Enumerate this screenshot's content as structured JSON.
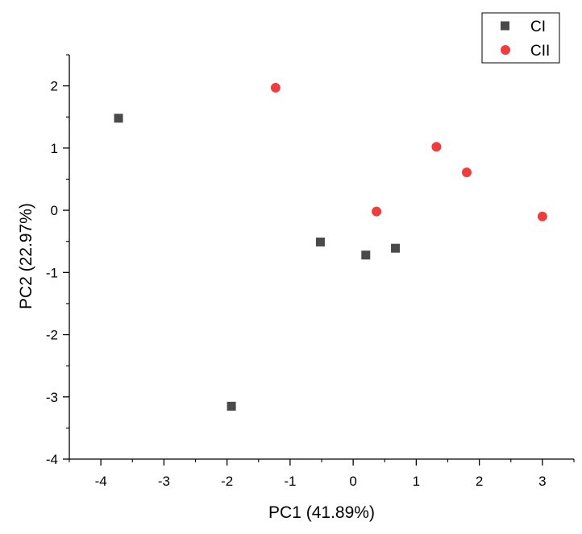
{
  "chart_data": {
    "type": "scatter",
    "title": "",
    "xlabel": "PC1 (41.89%)",
    "ylabel": "PC2 (22.97%)",
    "xlim": [
      -4.5,
      3.5
    ],
    "ylim": [
      -4,
      2.5
    ],
    "xticks": [
      -4,
      -3,
      -2,
      -1,
      0,
      1,
      2,
      3
    ],
    "yticks": [
      -4,
      -3,
      -2,
      -1,
      0,
      1,
      2
    ],
    "xtick_labels": [
      "-4",
      "-3",
      "-2",
      "-1",
      "0",
      "1",
      "2",
      "3"
    ],
    "ytick_labels": [
      "-4",
      "-3",
      "-2",
      "-1",
      "0",
      "1",
      "2"
    ],
    "legend_position": "top-right",
    "series": [
      {
        "name": "CI",
        "marker": "square",
        "color": "#4a4a4a",
        "x": [
          -3.72,
          -1.93,
          -0.52,
          0.2,
          0.67
        ],
        "y": [
          1.48,
          -3.15,
          -0.51,
          -0.72,
          -0.61
        ]
      },
      {
        "name": "CII",
        "marker": "circle",
        "color": "#f03c3c",
        "x": [
          -1.23,
          0.37,
          1.32,
          1.8,
          3.0
        ],
        "y": [
          1.97,
          -0.02,
          1.02,
          0.61,
          -0.1
        ]
      }
    ]
  }
}
